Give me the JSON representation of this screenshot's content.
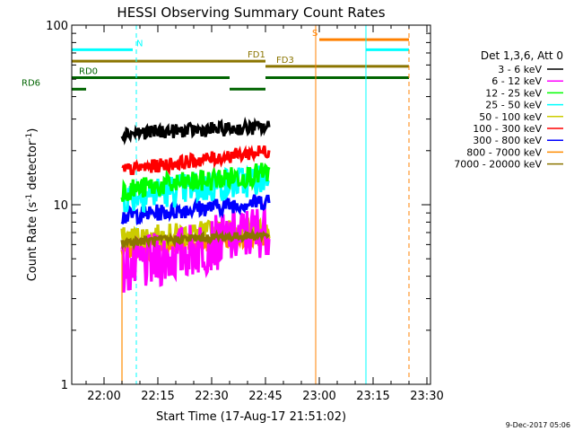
{
  "chart_data": {
    "type": "line",
    "title": "HESSI Observing Summary Count Rates",
    "xlabel": "Start Time (17-Aug-17 21:51:02)",
    "ylabel": "Count Rate (s",
    "ylabel_sup": "-1",
    "ylabel_tail": " detector",
    "ylabel_tail_sup": "-1",
    "ylabel_close": ")",
    "yscale": "log",
    "ylim": [
      1,
      100
    ],
    "xlim": [
      "21:51",
      "23:31"
    ],
    "y_ticks": [
      {
        "value": 1,
        "label": "1"
      },
      {
        "value": 10,
        "label": "10"
      },
      {
        "value": 100,
        "label": "100"
      }
    ],
    "x_ticks": [
      {
        "time": "22:00",
        "label": "22:00"
      },
      {
        "time": "22:15",
        "label": "22:15"
      },
      {
        "time": "22:30",
        "label": "22:30"
      },
      {
        "time": "22:45",
        "label": "22:45"
      },
      {
        "time": "23:00",
        "label": "23:00"
      },
      {
        "time": "23:15",
        "label": "23:15"
      },
      {
        "time": "23:30",
        "label": "23:30"
      }
    ],
    "data_window": [
      "22:05",
      "22:46"
    ],
    "legend_title": "Det 1,3,6, Att 0",
    "series": [
      {
        "name": "3 - 6 keV",
        "color": "#000000",
        "level_start": 25,
        "level_end": 27,
        "noise": 0.05
      },
      {
        "name": "6 - 12 keV",
        "color": "#ff00ff",
        "level_start": 4.3,
        "level_end": 7.5,
        "noise": 0.2
      },
      {
        "name": "12 - 25 keV",
        "color": "#00ff00",
        "level_start": 12,
        "level_end": 15,
        "noise": 0.08
      },
      {
        "name": "25 - 50 keV",
        "color": "#00ffff",
        "level_start": 11,
        "level_end": 14,
        "noise": 0.12
      },
      {
        "name": "50 - 100 keV",
        "color": "#cccc00",
        "level_start": 6.5,
        "level_end": 7.5,
        "noise": 0.08
      },
      {
        "name": "100 - 300 keV",
        "color": "#ff0000",
        "level_start": 15.5,
        "level_end": 20,
        "noise": 0.05
      },
      {
        "name": "300 - 800 keV",
        "color": "#0000ff",
        "level_start": 8.6,
        "level_end": 10.5,
        "noise": 0.06
      },
      {
        "name": "800 - 7000 keV",
        "color": "#ff8c00",
        "level_start": 5.5,
        "level_end": 6.5,
        "noise": 0.06
      },
      {
        "name": "7000 - 20000 keV",
        "color": "#8b7500",
        "level_start": 6.2,
        "level_end": 6.8,
        "noise": 0.03
      }
    ],
    "status_bars": [
      {
        "label": "N",
        "color": "#00ffff",
        "y_value": 73,
        "start": "21:51",
        "end": "22:08",
        "label_time": "22:09"
      },
      {
        "label": "",
        "color": "#00ffff",
        "y_value": 73,
        "start": "23:13",
        "end": "23:25"
      },
      {
        "label": "S",
        "color": "#ff8000",
        "y_value": 83,
        "start": "23:00",
        "end": "23:25",
        "label_time": "22:58"
      },
      {
        "label": "FD1",
        "color": "#8b7500",
        "y_value": 63,
        "start": "21:51",
        "end": "22:45",
        "label_time": "22:40"
      },
      {
        "label": "FD3",
        "color": "#8b7500",
        "y_value": 59,
        "start": "22:45",
        "end": "23:25",
        "label_time": "22:48"
      },
      {
        "label": "",
        "color": "#006400",
        "y_value": 51,
        "start": "21:51",
        "end": "22:35"
      },
      {
        "label": "RD0",
        "color": "#006400",
        "y_value": 51,
        "start": "21:52",
        "end": "21:56",
        "label_time": "21:53"
      },
      {
        "label": "",
        "color": "#006400",
        "y_value": 51,
        "start": "22:45",
        "end": "23:25"
      },
      {
        "label": "RD6",
        "color": "#006400",
        "y_value": 44,
        "start": "21:51",
        "end": "21:55",
        "label_time": "21:37"
      },
      {
        "label": "",
        "color": "#006400",
        "y_value": 44,
        "start": "22:35",
        "end": "22:45"
      }
    ],
    "vlines": [
      {
        "time": "21:51",
        "color": "#00ffff",
        "dashed": false
      },
      {
        "time": "22:09",
        "color": "#00ffff",
        "dashed": true
      },
      {
        "time": "22:59",
        "color": "#ff8000",
        "dashed": false
      },
      {
        "time": "23:13",
        "color": "#00ffff",
        "dashed": false
      },
      {
        "time": "23:25",
        "color": "#00ffff",
        "dashed": true
      },
      {
        "time": "23:25",
        "color": "#ff8000",
        "dashed": true
      }
    ],
    "grid": false,
    "legend_position": "right",
    "footer_date": "9-Dec-2017 05:06"
  }
}
